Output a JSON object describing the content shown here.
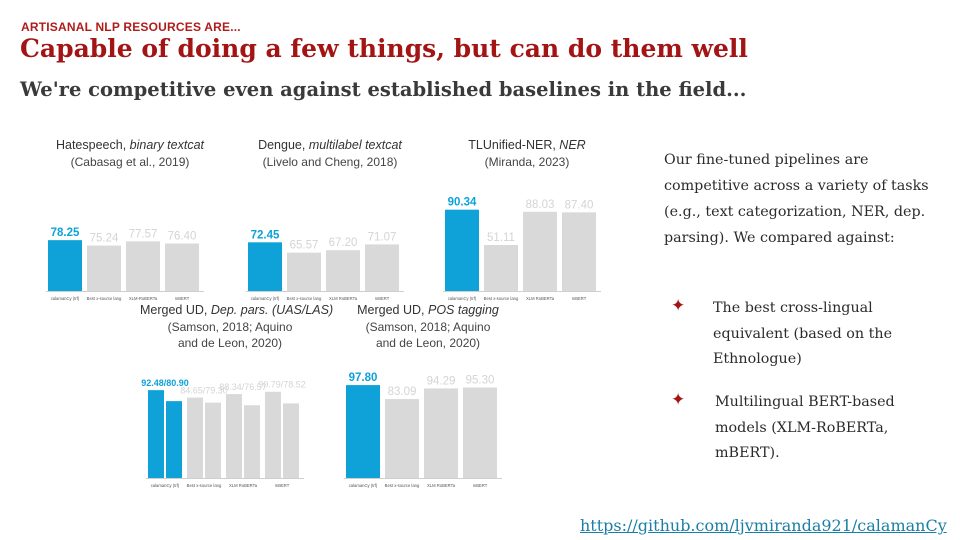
{
  "kicker": "ARTISANAL NLP RESOURCES ARE...",
  "title": "Capable of doing a few things, but can do them well",
  "subtitle": "We're competitive even against established baselines in the field...",
  "description": "Our fine-tuned pipelines are competitive across a variety of tasks (e.g., text categorization, NER, dep. parsing). We compared against:",
  "bullets": [
    "The best cross-lingual equivalent (based on the Ethnologue)",
    "Multilingual BERT-based models (XLM-RoBERTa, mBERT)."
  ],
  "bullet_icon": "star-bullet-icon",
  "link": "https://github.com/ljvmiranda921/calamanCy",
  "colors": {
    "accent": "#a31515",
    "highlight_bar": "#0ea2d8",
    "baseline_bar": "#d9d9d9",
    "link": "#1a7fa6"
  },
  "chart_data": [
    {
      "type": "bar",
      "title_plain": "Hatespeech, ",
      "title_italic": "binary textcat",
      "subtitle": "(Cabasag et al., 2019)",
      "categories": [
        "calamanCy (trf)",
        "Best x-source lang",
        "XLM-RoBERTa",
        "mBERT"
      ],
      "values": [
        78.25,
        75.24,
        77.57,
        76.4
      ],
      "labels": [
        "78.25",
        "75.24",
        "77.57",
        "76.40"
      ],
      "ylim": [
        50,
        100
      ],
      "grid": false
    },
    {
      "type": "bar",
      "title_plain": "Dengue, ",
      "title_italic": "multilabel textcat",
      "subtitle": "(Livelo and Cheng, 2018)",
      "categories": [
        "calamanCy (trf)",
        "Best x-source lang",
        "XLM RoBERTa",
        "mBERT"
      ],
      "values": [
        72.45,
        65.57,
        67.2,
        71.07
      ],
      "labels": [
        "72.45",
        "65.57",
        "67.20",
        "71.07"
      ],
      "ylim": [
        40,
        100
      ],
      "grid": false
    },
    {
      "type": "bar",
      "title_plain": "TLUnified-NER, ",
      "title_italic": "NER",
      "subtitle": "(Miranda, 2023)",
      "categories": [
        "calamanCy (trf)",
        "Best x-source lang",
        "XLM RoBERTa",
        "mBERT"
      ],
      "values": [
        90.34,
        51.11,
        88.03,
        87.4
      ],
      "labels": [
        "90.34",
        "51.11",
        "88.03",
        "87.40"
      ],
      "ylim": [
        0,
        100
      ],
      "grid": false
    },
    {
      "type": "bar",
      "grouped": true,
      "title_plain": "Merged UD, ",
      "title_italic": "Dep. pars. (UAS/LAS)",
      "subtitle": "(Samson, 2018; Aquino and de Leon, 2020)",
      "subtitle_lines": [
        "(Samson, 2018; Aquino",
        "and de Leon, 2020)"
      ],
      "categories": [
        "calamanCy (trf)",
        "Best x-source lang",
        "XLM RoBERTa",
        "mBERT"
      ],
      "series": [
        {
          "values": [
            92.48,
            84.65,
            88.34,
            90.79
          ]
        },
        {
          "values": [
            80.9,
            79.3,
            76.57,
            78.52
          ]
        }
      ],
      "labels": [
        "92.48/80.90",
        "84.65/79.30",
        "88.34/76.57",
        "90.79/78.52"
      ],
      "ylim": [
        0,
        100
      ],
      "grid": false
    },
    {
      "type": "bar",
      "title_plain": "Merged UD, ",
      "title_italic": "POS tagging",
      "subtitle": "(Samson, 2018; Aquino and de Leon, 2020)",
      "subtitle_lines": [
        "(Samson, 2018; Aquino",
        "and de Leon, 2020)"
      ],
      "categories": [
        "calamanCy (trf)",
        "Best x-source lang",
        "XLM RoBERTa",
        "mBERT"
      ],
      "values": [
        97.8,
        83.09,
        94.29,
        95.3
      ],
      "labels": [
        "97.80",
        "83.09",
        "94.29",
        "95.30"
      ],
      "ylim": [
        0,
        100
      ],
      "grid": false
    }
  ]
}
